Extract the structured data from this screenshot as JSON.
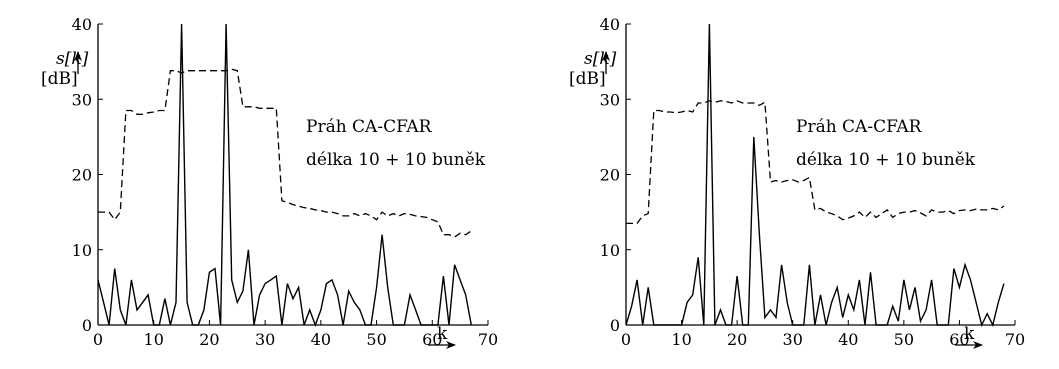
{
  "chart_data": [
    {
      "type": "line",
      "title": "",
      "xlabel": "k",
      "ylabel": "s[k]",
      "ylabel_unit": "[dB]",
      "xlim": [
        0,
        70
      ],
      "ylim": [
        0,
        40
      ],
      "x_ticks": [
        0,
        10,
        20,
        30,
        40,
        50,
        60,
        70
      ],
      "y_ticks": [
        0,
        10,
        20,
        30,
        40
      ],
      "grid": false,
      "annotation_line1": "Práh CA-CFAR",
      "annotation_line2": "délka 10 + 10 buněk",
      "series": [
        {
          "style": "solid",
          "x": [
            0,
            1,
            2,
            3,
            4,
            5,
            6,
            7,
            8,
            9,
            10,
            11,
            12,
            13,
            14,
            15,
            16,
            17,
            18,
            19,
            20,
            21,
            22,
            23,
            24,
            25,
            26,
            27,
            28,
            29,
            30,
            31,
            32,
            33,
            34,
            35,
            36,
            37,
            38,
            39,
            40,
            41,
            42,
            43,
            44,
            45,
            46,
            47,
            48,
            49,
            50,
            51,
            52,
            53,
            54,
            55,
            56,
            57,
            58,
            59,
            60,
            61,
            62,
            63,
            64,
            65,
            66,
            67
          ],
          "y": [
            6,
            3,
            0,
            7.5,
            2,
            0,
            6,
            2,
            3,
            4,
            0,
            0,
            3.5,
            0,
            3,
            40,
            3,
            0,
            0,
            2,
            7,
            7.5,
            0,
            40,
            6,
            3,
            4.5,
            10,
            0,
            4,
            5.5,
            6,
            6.5,
            0,
            5.5,
            3.5,
            5,
            0,
            2,
            0,
            2,
            5.5,
            6,
            4,
            0,
            4.5,
            3,
            2,
            0,
            0,
            5,
            12,
            5,
            0,
            0,
            0,
            4,
            2,
            0,
            0,
            0,
            0,
            6.5,
            0,
            8,
            6,
            4,
            0
          ]
        },
        {
          "style": "dashed",
          "x": [
            0,
            1,
            2,
            3,
            4,
            5,
            6,
            7,
            8,
            9,
            10,
            11,
            12,
            13,
            14,
            15,
            16,
            17,
            18,
            19,
            20,
            21,
            22,
            23,
            24,
            25,
            26,
            27,
            28,
            29,
            30,
            31,
            32,
            33,
            34,
            35,
            36,
            37,
            38,
            39,
            40,
            41,
            42,
            43,
            44,
            45,
            46,
            47,
            48,
            49,
            50,
            51,
            52,
            53,
            54,
            55,
            56,
            57,
            58,
            59,
            60,
            61,
            62,
            63,
            64,
            65,
            66,
            67
          ],
          "y": [
            15,
            15,
            15,
            14,
            15,
            28.5,
            28.5,
            28,
            28,
            28.2,
            28.3,
            28.5,
            28.5,
            33.8,
            33.8,
            33.5,
            33.8,
            33.8,
            33.8,
            33.8,
            33.8,
            33.8,
            33.8,
            33.8,
            34,
            33.8,
            29,
            29,
            29,
            28.8,
            28.8,
            28.8,
            28.8,
            16.5,
            16.3,
            16,
            15.8,
            15.6,
            15.5,
            15.3,
            15.2,
            15,
            15,
            14.8,
            14.5,
            14.5,
            14.8,
            14.5,
            14.8,
            14.5,
            14,
            15,
            14.5,
            14.8,
            14.5,
            14.8,
            14.7,
            14.5,
            14.4,
            14.3,
            14,
            13.7,
            12,
            12,
            11.7,
            12.2,
            12,
            12.5
          ]
        }
      ]
    },
    {
      "type": "line",
      "title": "",
      "xlabel": "k",
      "ylabel": "s[k]",
      "ylabel_unit": "[dB]",
      "xlim": [
        0,
        70
      ],
      "ylim": [
        0,
        40
      ],
      "x_ticks": [
        0,
        10,
        20,
        30,
        40,
        50,
        60,
        70
      ],
      "y_ticks": [
        0,
        10,
        20,
        30,
        40
      ],
      "grid": false,
      "annotation_line1": "Práh CA-CFAR",
      "annotation_line2": "délka 10 + 10 buněk",
      "series": [
        {
          "style": "solid",
          "x": [
            0,
            1,
            2,
            3,
            4,
            5,
            6,
            7,
            8,
            9,
            10,
            11,
            12,
            13,
            14,
            15,
            16,
            17,
            18,
            19,
            20,
            21,
            22,
            23,
            24,
            25,
            26,
            27,
            28,
            29,
            30,
            31,
            32,
            33,
            34,
            35,
            36,
            37,
            38,
            39,
            40,
            41,
            42,
            43,
            44,
            45,
            46,
            47,
            48,
            49,
            50,
            51,
            52,
            53,
            54,
            55,
            56,
            57,
            58,
            59,
            60,
            61,
            62,
            63,
            64,
            65,
            66,
            67,
            68
          ],
          "y": [
            0,
            2.5,
            6,
            0,
            5,
            0,
            0,
            0,
            0,
            0,
            0,
            3,
            4,
            9,
            0,
            40,
            0,
            2,
            0,
            0,
            6.5,
            0,
            0,
            25,
            12,
            1,
            2,
            1,
            8,
            3,
            0,
            0,
            0,
            8,
            0,
            4,
            0,
            3,
            5,
            1,
            4,
            2,
            6,
            0,
            7,
            0,
            0,
            0,
            2.5,
            0.5,
            6,
            2,
            5,
            0.5,
            2,
            6,
            0,
            0,
            0,
            7.5,
            5,
            8,
            6,
            3,
            0,
            1.5,
            0,
            3,
            5.5
          ]
        },
        {
          "style": "dashed",
          "x": [
            0,
            1,
            2,
            3,
            4,
            5,
            6,
            7,
            8,
            9,
            10,
            11,
            12,
            13,
            14,
            15,
            16,
            17,
            18,
            19,
            20,
            21,
            22,
            23,
            24,
            25,
            26,
            27,
            28,
            29,
            30,
            31,
            32,
            33,
            34,
            35,
            36,
            37,
            38,
            39,
            40,
            41,
            42,
            43,
            44,
            45,
            46,
            47,
            48,
            49,
            50,
            51,
            52,
            53,
            54,
            55,
            56,
            57,
            58,
            59,
            60,
            61,
            62,
            63,
            64,
            65,
            66,
            67,
            68
          ],
          "y": [
            13.5,
            13.5,
            13.5,
            14.5,
            14.8,
            28.5,
            28.5,
            28.3,
            28.3,
            28.2,
            28.3,
            28.5,
            28.3,
            29.5,
            29.5,
            29.8,
            29.6,
            29.8,
            29.7,
            29.5,
            29.8,
            29.5,
            29.5,
            29.5,
            29.2,
            29.6,
            19,
            19.2,
            19,
            19.2,
            19.3,
            19,
            19.2,
            19.6,
            15.3,
            15.5,
            15,
            14.8,
            14.5,
            14,
            14.2,
            14.5,
            15,
            14.3,
            15,
            14.3,
            14.8,
            15.3,
            14.3,
            14.8,
            15,
            15,
            15.2,
            14.9,
            14.5,
            15.3,
            15,
            15,
            15.2,
            14.8,
            15.2,
            15.3,
            15.2,
            15.4,
            15.3,
            15.3,
            15.5,
            15.3,
            15.8
          ]
        }
      ]
    }
  ]
}
